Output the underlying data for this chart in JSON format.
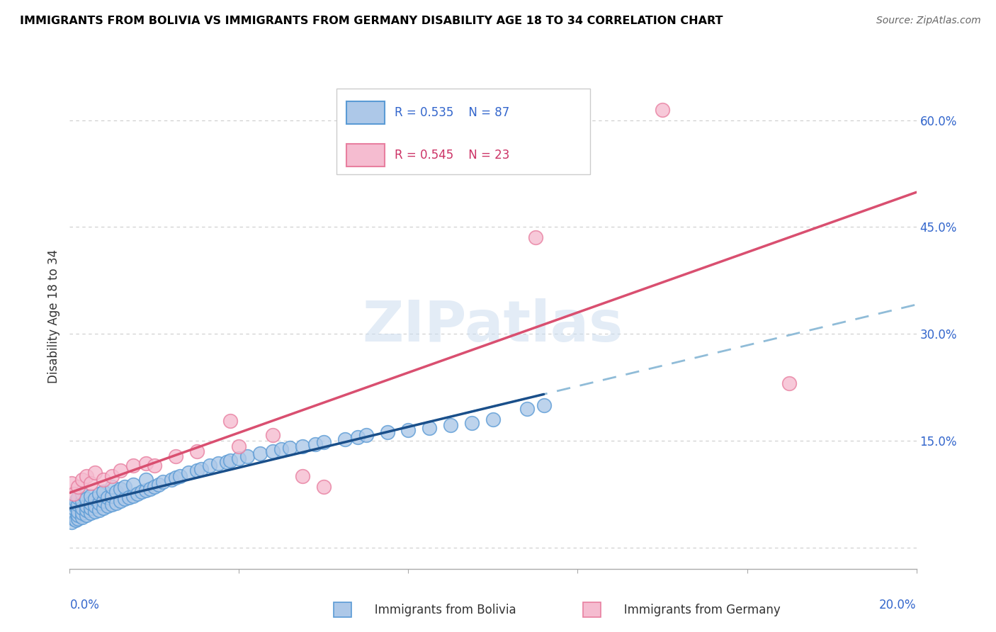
{
  "title": "IMMIGRANTS FROM BOLIVIA VS IMMIGRANTS FROM GERMANY DISABILITY AGE 18 TO 34 CORRELATION CHART",
  "source": "Source: ZipAtlas.com",
  "ylabel": "Disability Age 18 to 34",
  "xlim": [
    0.0,
    0.2
  ],
  "ylim": [
    -0.03,
    0.68
  ],
  "yticks": [
    0.0,
    0.15,
    0.3,
    0.45,
    0.6
  ],
  "ytick_labels": [
    "",
    "15.0%",
    "30.0%",
    "45.0%",
    "60.0%"
  ],
  "grid_color": "#cccccc",
  "background_color": "#ffffff",
  "bolivia_color": "#adc8e8",
  "bolivia_edge_color": "#5b9bd5",
  "germany_color": "#f5bcd0",
  "germany_edge_color": "#e87fa0",
  "bolivia_R": "R = 0.535",
  "bolivia_N": "N = 87",
  "germany_R": "R = 0.545",
  "germany_N": "N = 23",
  "bolivia_label": "Immigrants from Bolivia",
  "germany_label": "Immigrants from Germany",
  "trend_blue_color": "#1a4f8a",
  "trend_pink_color": "#d94f70",
  "trend_blue_dashed_color": "#90bcd8",
  "label_color_blue": "#3366cc",
  "label_color_pink": "#cc3366",
  "bolivia_x": [
    0.0005,
    0.001,
    0.001,
    0.001,
    0.001,
    0.001,
    0.0015,
    0.0015,
    0.002,
    0.002,
    0.002,
    0.002,
    0.002,
    0.003,
    0.003,
    0.003,
    0.003,
    0.003,
    0.004,
    0.004,
    0.004,
    0.004,
    0.005,
    0.005,
    0.005,
    0.005,
    0.006,
    0.006,
    0.006,
    0.007,
    0.007,
    0.007,
    0.008,
    0.008,
    0.008,
    0.009,
    0.009,
    0.01,
    0.01,
    0.01,
    0.011,
    0.011,
    0.012,
    0.012,
    0.013,
    0.013,
    0.014,
    0.015,
    0.015,
    0.016,
    0.017,
    0.018,
    0.018,
    0.019,
    0.02,
    0.021,
    0.022,
    0.024,
    0.025,
    0.026,
    0.028,
    0.03,
    0.031,
    0.033,
    0.035,
    0.037,
    0.038,
    0.04,
    0.042,
    0.045,
    0.048,
    0.05,
    0.052,
    0.055,
    0.058,
    0.06,
    0.065,
    0.068,
    0.07,
    0.075,
    0.08,
    0.085,
    0.09,
    0.095,
    0.1,
    0.108,
    0.112
  ],
  "bolivia_y": [
    0.035,
    0.04,
    0.045,
    0.05,
    0.055,
    0.06,
    0.038,
    0.065,
    0.04,
    0.045,
    0.05,
    0.06,
    0.07,
    0.042,
    0.048,
    0.055,
    0.065,
    0.075,
    0.045,
    0.052,
    0.058,
    0.068,
    0.048,
    0.055,
    0.062,
    0.072,
    0.05,
    0.058,
    0.068,
    0.052,
    0.062,
    0.075,
    0.055,
    0.065,
    0.078,
    0.058,
    0.07,
    0.06,
    0.072,
    0.085,
    0.062,
    0.078,
    0.065,
    0.082,
    0.068,
    0.085,
    0.07,
    0.072,
    0.088,
    0.075,
    0.078,
    0.08,
    0.095,
    0.082,
    0.085,
    0.088,
    0.092,
    0.095,
    0.098,
    0.1,
    0.105,
    0.108,
    0.11,
    0.115,
    0.118,
    0.12,
    0.122,
    0.125,
    0.128,
    0.132,
    0.135,
    0.138,
    0.14,
    0.142,
    0.145,
    0.148,
    0.152,
    0.155,
    0.158,
    0.162,
    0.165,
    0.168,
    0.172,
    0.175,
    0.18,
    0.195,
    0.2
  ],
  "germany_x": [
    0.0005,
    0.001,
    0.002,
    0.003,
    0.004,
    0.005,
    0.006,
    0.008,
    0.01,
    0.012,
    0.015,
    0.018,
    0.02,
    0.025,
    0.03,
    0.038,
    0.04,
    0.048,
    0.055,
    0.06,
    0.11,
    0.14,
    0.17
  ],
  "germany_y": [
    0.09,
    0.075,
    0.085,
    0.095,
    0.1,
    0.09,
    0.105,
    0.095,
    0.1,
    0.108,
    0.115,
    0.118,
    0.115,
    0.128,
    0.135,
    0.178,
    0.142,
    0.158,
    0.1,
    0.085,
    0.435,
    0.615,
    0.23
  ]
}
